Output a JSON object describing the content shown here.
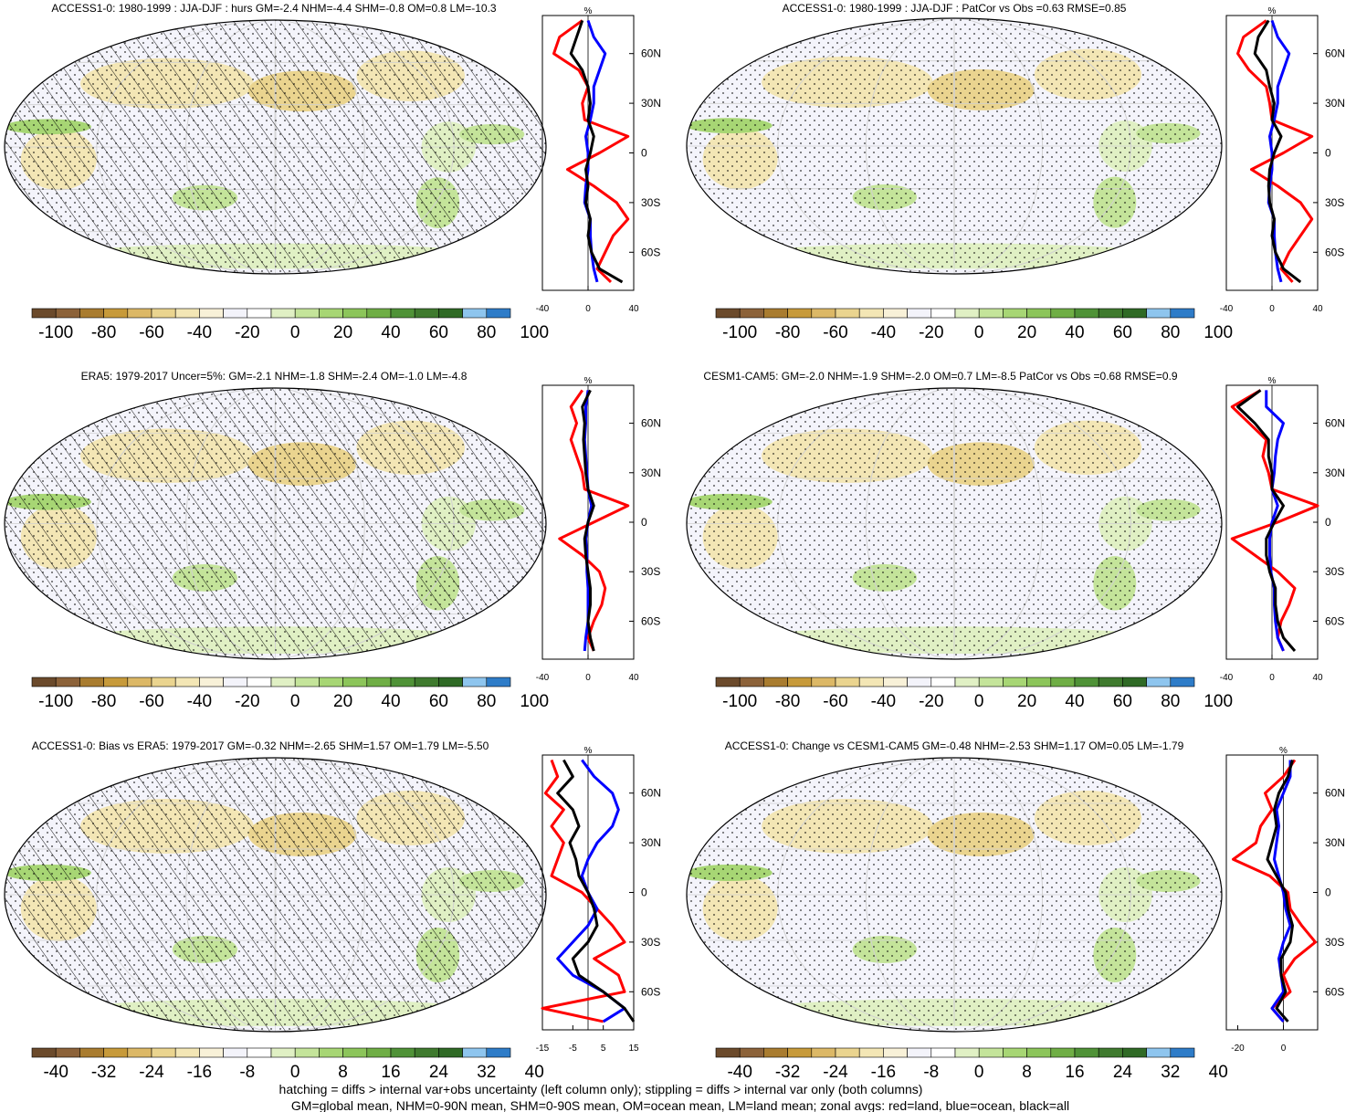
{
  "chart_data": [
    {
      "type": "map",
      "title": "ACCESS1-0: 1980-1999 : JJA-DJF : hurs GM=-2.4 NHM=-4.4 SHM=-0.8 OM=0.8 LM=-10.3",
      "colorbar_ticks": [
        "-100",
        "-80",
        "-60",
        "-40",
        "-20",
        "0",
        "20",
        "40",
        "60",
        "80",
        "100"
      ],
      "hatching": true,
      "stippling": true,
      "zonal": {
        "unit": "%",
        "x_ticks": [
          "-40",
          "0",
          "40"
        ],
        "xlim": [
          -40,
          40
        ],
        "lat_ticks": [
          "60N",
          "30N",
          "0",
          "30S",
          "60S"
        ],
        "series": [
          {
            "color": "#ff0000",
            "lat": [
              80,
              70,
              60,
              50,
              40,
              30,
              20,
              10,
              0,
              -10,
              -20,
              -30,
              -40,
              -50,
              -60,
              -70,
              -78
            ],
            "values": [
              -5,
              -25,
              -30,
              -8,
              0,
              -5,
              -3,
              35,
              10,
              -18,
              5,
              25,
              35,
              22,
              15,
              8,
              20
            ]
          },
          {
            "color": "#0000ff",
            "lat": [
              80,
              70,
              60,
              50,
              40,
              30,
              20,
              10,
              0,
              -10,
              -20,
              -30,
              -40,
              -50,
              -60,
              -70,
              -78
            ],
            "values": [
              0,
              5,
              15,
              10,
              5,
              5,
              2,
              -2,
              0,
              0,
              -2,
              -3,
              2,
              2,
              3,
              5,
              8
            ]
          },
          {
            "color": "#000000",
            "lat": [
              80,
              70,
              60,
              50,
              40,
              30,
              20,
              10,
              0,
              -10,
              -20,
              -30,
              -40,
              -50,
              -60,
              -70,
              -78
            ],
            "values": [
              -5,
              -10,
              -15,
              -5,
              0,
              2,
              0,
              5,
              2,
              -2,
              0,
              -2,
              2,
              0,
              3,
              10,
              30
            ]
          }
        ]
      }
    },
    {
      "type": "map",
      "title": "ACCESS1-0: 1980-1999 : JJA-DJF : PatCor vs Obs =0.63 RMSE=0.85",
      "colorbar_ticks": [
        "-100",
        "-80",
        "-60",
        "-40",
        "-20",
        "0",
        "20",
        "40",
        "60",
        "80",
        "100"
      ],
      "hatching": false,
      "stippling": true,
      "zonal": {
        "unit": "%",
        "x_ticks": [
          "-40",
          "0",
          "40"
        ],
        "xlim": [
          -40,
          40
        ],
        "lat_ticks": [
          "60N",
          "30N",
          "0",
          "30S",
          "60S"
        ],
        "series": [
          {
            "color": "#ff0000",
            "lat": [
              80,
              70,
              60,
              50,
              40,
              30,
              20,
              10,
              0,
              -10,
              -20,
              -30,
              -40,
              -50,
              -60,
              -70,
              -78
            ],
            "values": [
              -5,
              -25,
              -30,
              -20,
              -5,
              -2,
              0,
              35,
              10,
              -18,
              5,
              25,
              35,
              25,
              15,
              8,
              18
            ]
          },
          {
            "color": "#0000ff",
            "lat": [
              80,
              70,
              60,
              50,
              40,
              30,
              20,
              10,
              0,
              -10,
              -20,
              -30,
              -40,
              -50,
              -60,
              -70,
              -78
            ],
            "values": [
              0,
              5,
              15,
              10,
              5,
              5,
              2,
              -2,
              0,
              0,
              -2,
              -3,
              2,
              2,
              3,
              5,
              8
            ]
          },
          {
            "color": "#000000",
            "lat": [
              80,
              70,
              60,
              50,
              40,
              30,
              20,
              10,
              0,
              -10,
              -20,
              -30,
              -40,
              -50,
              -60,
              -70,
              -78
            ],
            "values": [
              -3,
              -12,
              -15,
              -5,
              -2,
              2,
              0,
              8,
              2,
              -2,
              -3,
              -2,
              2,
              0,
              3,
              10,
              25
            ]
          }
        ]
      }
    },
    {
      "type": "map",
      "title": "ERA5: 1979-2017 Uncer=5%: GM=-2.1 NHM=-1.8 SHM=-2.4 OM=-1.0 LM=-4.8",
      "colorbar_ticks": [
        "-100",
        "-80",
        "-60",
        "-40",
        "-20",
        "0",
        "20",
        "40",
        "60",
        "80",
        "100"
      ],
      "hatching": true,
      "stippling": true,
      "zonal": {
        "unit": "%",
        "x_ticks": [
          "-40",
          "0",
          "40"
        ],
        "xlim": [
          -40,
          40
        ],
        "lat_ticks": [
          "60N",
          "30N",
          "0",
          "30S",
          "60S"
        ],
        "series": [
          {
            "color": "#ff0000",
            "lat": [
              80,
              70,
              60,
              50,
              40,
              30,
              20,
              10,
              0,
              -10,
              -20,
              -30,
              -40,
              -50,
              -60,
              -70,
              -78
            ],
            "values": [
              -5,
              -15,
              -10,
              -15,
              -10,
              -5,
              -3,
              35,
              5,
              -25,
              -5,
              10,
              15,
              12,
              5,
              0,
              5
            ]
          },
          {
            "color": "#0000ff",
            "lat": [
              80,
              70,
              60,
              50,
              40,
              30,
              20,
              10,
              0,
              -10,
              -20,
              -30,
              -40,
              -50,
              -60,
              -70,
              -78
            ],
            "values": [
              0,
              -2,
              -2,
              -3,
              -2,
              -1,
              0,
              3,
              0,
              -2,
              -1,
              -1,
              0,
              0,
              0,
              -2,
              -3
            ]
          },
          {
            "color": "#000000",
            "lat": [
              80,
              70,
              60,
              50,
              40,
              30,
              20,
              10,
              0,
              -10,
              -20,
              -30,
              -40,
              -50,
              -60,
              -70,
              -78
            ],
            "values": [
              2,
              -5,
              -3,
              -4,
              -3,
              -2,
              0,
              5,
              0,
              -3,
              -2,
              0,
              2,
              2,
              0,
              2,
              5
            ]
          }
        ]
      }
    },
    {
      "type": "map",
      "title": "CESM1-CAM5: GM=-2.0 NHM=-1.9 SHM=-2.0 OM=0.7 LM=-8.5 PatCor vs Obs =0.68 RMSE=0.9",
      "colorbar_ticks": [
        "-100",
        "-80",
        "-60",
        "-40",
        "-20",
        "0",
        "20",
        "40",
        "60",
        "80",
        "100"
      ],
      "hatching": false,
      "stippling": true,
      "zonal": {
        "unit": "%",
        "x_ticks": [
          "-40",
          "0",
          "40"
        ],
        "xlim": [
          -40,
          40
        ],
        "lat_ticks": [
          "60N",
          "30N",
          "0",
          "30S",
          "60S"
        ],
        "series": [
          {
            "color": "#ff0000",
            "lat": [
              80,
              70,
              60,
              50,
              40,
              30,
              20,
              10,
              0,
              -10,
              -20,
              -30,
              -40,
              -50,
              -60,
              -70,
              -78
            ],
            "values": [
              -10,
              -35,
              -20,
              -5,
              -8,
              -3,
              0,
              40,
              5,
              -35,
              -15,
              5,
              20,
              15,
              8,
              5,
              10
            ]
          },
          {
            "color": "#0000ff",
            "lat": [
              80,
              70,
              60,
              50,
              40,
              30,
              20,
              10,
              0,
              -10,
              -20,
              -30,
              -40,
              -50,
              -60,
              -70,
              -78
            ],
            "values": [
              -5,
              -5,
              10,
              5,
              3,
              2,
              0,
              5,
              0,
              -2,
              -2,
              -1,
              2,
              2,
              3,
              5,
              10
            ]
          },
          {
            "color": "#000000",
            "lat": [
              80,
              70,
              60,
              50,
              40,
              30,
              20,
              10,
              0,
              -10,
              -20,
              -30,
              -40,
              -50,
              -60,
              -70,
              -78
            ],
            "values": [
              -10,
              -30,
              -15,
              -3,
              -3,
              0,
              0,
              10,
              2,
              -5,
              -5,
              -2,
              3,
              3,
              5,
              10,
              20
            ]
          }
        ]
      }
    },
    {
      "type": "map",
      "title": "ACCESS1-0: Bias vs ERA5: 1979-2017 GM=-0.32 NHM=-2.65 SHM=1.57 OM=1.79 LM=-5.50",
      "colorbar_ticks": [
        "-40",
        "-32",
        "-24",
        "-16",
        "-8",
        "0",
        "8",
        "16",
        "24",
        "32",
        "40"
      ],
      "hatching": true,
      "stippling": true,
      "zonal": {
        "unit": "%",
        "x_ticks": [
          "-15",
          "-5",
          "5",
          "15"
        ],
        "xlim": [
          -15,
          15
        ],
        "lat_ticks": [
          "60N",
          "30N",
          "0",
          "30S",
          "60S"
        ],
        "series": [
          {
            "color": "#ff0000",
            "lat": [
              80,
              70,
              60,
              50,
              40,
              30,
              20,
              10,
              0,
              -10,
              -20,
              -30,
              -40,
              -50,
              -60,
              -70,
              -78
            ],
            "values": [
              -12,
              -10,
              -14,
              -8,
              -12,
              -8,
              -10,
              -12,
              -2,
              3,
              8,
              12,
              2,
              10,
              12,
              -15,
              5
            ]
          },
          {
            "color": "#0000ff",
            "lat": [
              80,
              70,
              60,
              50,
              40,
              30,
              20,
              10,
              0,
              -10,
              -20,
              -30,
              -40,
              -50,
              -60,
              -70,
              -78
            ],
            "values": [
              -2,
              2,
              8,
              10,
              8,
              3,
              0,
              -2,
              0,
              3,
              0,
              -5,
              -10,
              -5,
              5,
              12,
              5
            ]
          },
          {
            "color": "#000000",
            "lat": [
              80,
              70,
              60,
              50,
              40,
              30,
              20,
              10,
              0,
              -10,
              -20,
              -30,
              -40,
              -50,
              -60,
              -70,
              -78
            ],
            "values": [
              -8,
              -5,
              -10,
              -5,
              -3,
              -6,
              -4,
              -3,
              0,
              2,
              3,
              0,
              -5,
              -3,
              5,
              12,
              15
            ]
          }
        ]
      }
    },
    {
      "type": "map",
      "title": "ACCESS1-0: Change vs CESM1-CAM5 GM=-0.48 NHM=-2.53 SHM=1.17 OM=0.05 LM=-1.79",
      "colorbar_ticks": [
        "-40",
        "-32",
        "-24",
        "-16",
        "-8",
        "0",
        "8",
        "16",
        "24",
        "32",
        "40"
      ],
      "hatching": false,
      "stippling": true,
      "zonal": {
        "unit": "%",
        "x_ticks": [
          "-20",
          "0"
        ],
        "xlim": [
          -25,
          15
        ],
        "lat_ticks": [
          "60N",
          "30N",
          "0",
          "30S",
          "60S"
        ],
        "series": [
          {
            "color": "#ff0000",
            "lat": [
              80,
              70,
              60,
              50,
              40,
              30,
              20,
              10,
              0,
              -10,
              -20,
              -30,
              -40,
              -50,
              -60,
              -70,
              -78
            ],
            "values": [
              5,
              0,
              -8,
              -5,
              -10,
              -12,
              -22,
              -6,
              2,
              3,
              8,
              14,
              5,
              0,
              3,
              -5,
              0
            ]
          },
          {
            "color": "#0000ff",
            "lat": [
              80,
              70,
              60,
              50,
              40,
              30,
              20,
              10,
              0,
              -10,
              -20,
              -30,
              -40,
              -50,
              -60,
              -70,
              -78
            ],
            "values": [
              3,
              3,
              0,
              -3,
              -2,
              -3,
              -4,
              -2,
              0,
              1,
              3,
              0,
              -2,
              -1,
              0,
              -5,
              0
            ]
          },
          {
            "color": "#000000",
            "lat": [
              80,
              70,
              60,
              50,
              40,
              30,
              20,
              10,
              0,
              -10,
              -20,
              -30,
              -40,
              -50,
              -60,
              -70,
              -78
            ],
            "values": [
              4,
              2,
              -2,
              -4,
              -3,
              -5,
              -7,
              -3,
              1,
              2,
              4,
              3,
              -1,
              -1,
              1,
              -3,
              2
            ]
          }
        ]
      }
    }
  ],
  "palette": [
    "#6b4a2b",
    "#8c6239",
    "#a97c2f",
    "#c79a3a",
    "#dcb866",
    "#ead48f",
    "#f3e6b5",
    "#f8f1d8",
    "#f3f3fa",
    "#ffffff",
    "#e0f0c4",
    "#c4e49a",
    "#a7d674",
    "#8cc55a",
    "#6fae45",
    "#4f9237",
    "#3f7a2e",
    "#2f6a25",
    "#8ec5ee",
    "#2e7cc8"
  ],
  "footer": {
    "line1": "hatching = diffs > internal var+obs uncertainty (left column only); stippling = diffs > internal var only (both columns)",
    "line2": "GM=global mean, NHM=0-90N mean, SHM=0-90S mean, OM=ocean mean, LM=land mean; zonal avgs: red=land, blue=ocean, black=all"
  }
}
